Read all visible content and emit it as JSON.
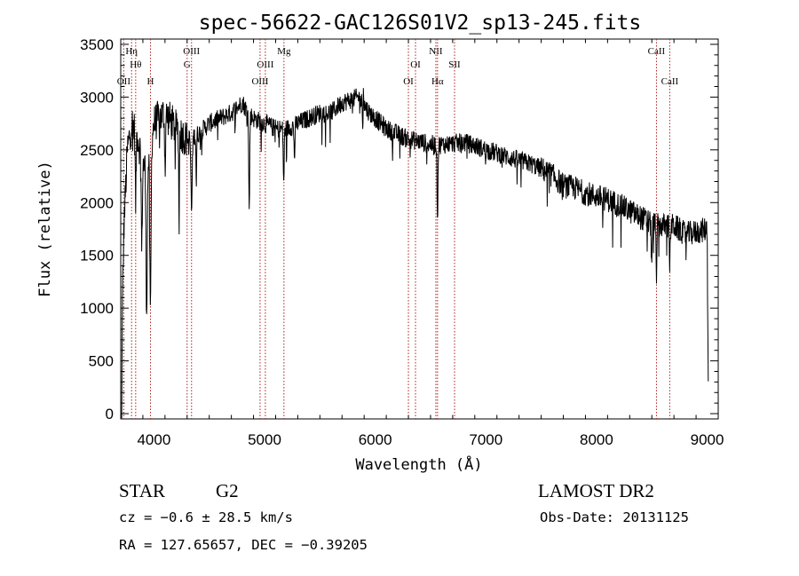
{
  "chart_data": {
    "type": "line",
    "title": "spec-56622-GAC126S01V2_sp13-245.fits",
    "xlabel": "Wavelength (Å)",
    "ylabel": "Flux (relative)",
    "xlim": [
      3700,
      9100
    ],
    "ylim": [
      -50,
      3550
    ],
    "xticks": [
      4000,
      5000,
      6000,
      7000,
      8000,
      9000
    ],
    "yticks": [
      0,
      500,
      1000,
      1500,
      2000,
      2500,
      3000,
      3500
    ],
    "x_tick_labels": [
      "4000",
      "5000",
      "6000",
      "7000",
      "8000",
      "9000"
    ],
    "y_tick_labels": [
      "0",
      "500",
      "1000",
      "1500",
      "2000",
      "2500",
      "3000",
      "3500"
    ],
    "continuum_anchors": [
      [
        3700,
        200
      ],
      [
        3715,
        1100
      ],
      [
        3730,
        1800
      ],
      [
        3760,
        2500
      ],
      [
        3800,
        2750
      ],
      [
        3850,
        2650
      ],
      [
        3900,
        2350
      ],
      [
        3950,
        2400
      ],
      [
        4000,
        2750
      ],
      [
        4100,
        2850
      ],
      [
        4200,
        2700
      ],
      [
        4300,
        2600
      ],
      [
        4400,
        2650
      ],
      [
        4500,
        2750
      ],
      [
        4600,
        2800
      ],
      [
        4700,
        2850
      ],
      [
        4800,
        2950
      ],
      [
        4850,
        2850
      ],
      [
        4900,
        2800
      ],
      [
        5000,
        2750
      ],
      [
        5100,
        2700
      ],
      [
        5200,
        2700
      ],
      [
        5300,
        2750
      ],
      [
        5400,
        2800
      ],
      [
        5500,
        2850
      ],
      [
        5600,
        2850
      ],
      [
        5700,
        2950
      ],
      [
        5800,
        2980
      ],
      [
        5850,
        3000
      ],
      [
        5950,
        2850
      ],
      [
        6000,
        2800
      ],
      [
        6100,
        2700
      ],
      [
        6200,
        2650
      ],
      [
        6300,
        2600
      ],
      [
        6400,
        2580
      ],
      [
        6500,
        2550
      ],
      [
        6600,
        2550
      ],
      [
        6700,
        2560
      ],
      [
        6800,
        2570
      ],
      [
        6900,
        2540
      ],
      [
        7000,
        2500
      ],
      [
        7100,
        2470
      ],
      [
        7200,
        2430
      ],
      [
        7300,
        2400
      ],
      [
        7400,
        2370
      ],
      [
        7500,
        2320
      ],
      [
        7600,
        2260
      ],
      [
        7700,
        2160
      ],
      [
        7800,
        2140
      ],
      [
        7900,
        2090
      ],
      [
        8000,
        2060
      ],
      [
        8100,
        2030
      ],
      [
        8200,
        1980
      ],
      [
        8300,
        1920
      ],
      [
        8400,
        1860
      ],
      [
        8500,
        1800
      ],
      [
        8600,
        1780
      ],
      [
        8700,
        1780
      ],
      [
        8800,
        1700
      ],
      [
        8900,
        1720
      ],
      [
        9000,
        1750
      ],
      [
        9010,
        300
      ]
    ],
    "absorption_features": [
      {
        "x": 3705,
        "depth": 1500,
        "width": 6
      },
      {
        "x": 3835,
        "depth": 700,
        "width": 6
      },
      {
        "x": 3890,
        "depth": 900,
        "width": 6
      },
      {
        "x": 3934,
        "depth": 1400,
        "width": 8
      },
      {
        "x": 3968,
        "depth": 1600,
        "width": 8
      },
      {
        "x": 4101,
        "depth": 500,
        "width": 6
      },
      {
        "x": 4227,
        "depth": 900,
        "width": 4
      },
      {
        "x": 4340,
        "depth": 700,
        "width": 8
      },
      {
        "x": 4383,
        "depth": 500,
        "width": 4
      },
      {
        "x": 4861,
        "depth": 900,
        "width": 6
      },
      {
        "x": 5173,
        "depth": 500,
        "width": 6
      },
      {
        "x": 5270,
        "depth": 300,
        "width": 6
      },
      {
        "x": 5890,
        "depth": 350,
        "width": 6
      },
      {
        "x": 6563,
        "depth": 650,
        "width": 6
      },
      {
        "x": 8498,
        "depth": 350,
        "width": 6
      },
      {
        "x": 8542,
        "depth": 450,
        "width": 6
      },
      {
        "x": 8662,
        "depth": 350,
        "width": 6
      }
    ],
    "emission_spikes": [
      {
        "x": 5893,
        "height": 450,
        "width": 4
      }
    ],
    "line_markers": [
      {
        "x": 3727,
        "label": "OII",
        "row": 3
      },
      {
        "x": 3798,
        "label": "Hη",
        "row": 1
      },
      {
        "x": 3835,
        "label": "Hθ",
        "row": 2
      },
      {
        "x": 3969,
        "label": "H",
        "row": 3
      },
      {
        "x": 4300,
        "label": "G",
        "row": 2
      },
      {
        "x": 4340,
        "label": "OIII",
        "row": 0
      },
      {
        "x": 4959,
        "label": "OIII",
        "row": 3
      },
      {
        "x": 5007,
        "label": "OIII",
        "row": 2
      },
      {
        "x": 5175,
        "label": "Mg",
        "row": 0
      },
      {
        "x": 6300,
        "label": "OI",
        "row": 3
      },
      {
        "x": 6364,
        "label": "OI",
        "row": 2
      },
      {
        "x": 6548,
        "label": "NII",
        "row": 0
      },
      {
        "x": 6563,
        "label": "Hα",
        "row": 3
      },
      {
        "x": 6717,
        "label": "SII",
        "row": 2
      },
      {
        "x": 8542,
        "label": "CaII",
        "row": 0
      },
      {
        "x": 8662,
        "label": "CaII",
        "row": 3
      }
    ]
  },
  "info": {
    "class_label": "STAR",
    "subclass_label": "G2",
    "survey": "LAMOST DR2",
    "cz": "cz = −0.6 ± 28.5 km/s",
    "obs_date": "Obs-Date: 20131125",
    "radec": "RA = 127.65657, DEC =  −0.39205"
  }
}
